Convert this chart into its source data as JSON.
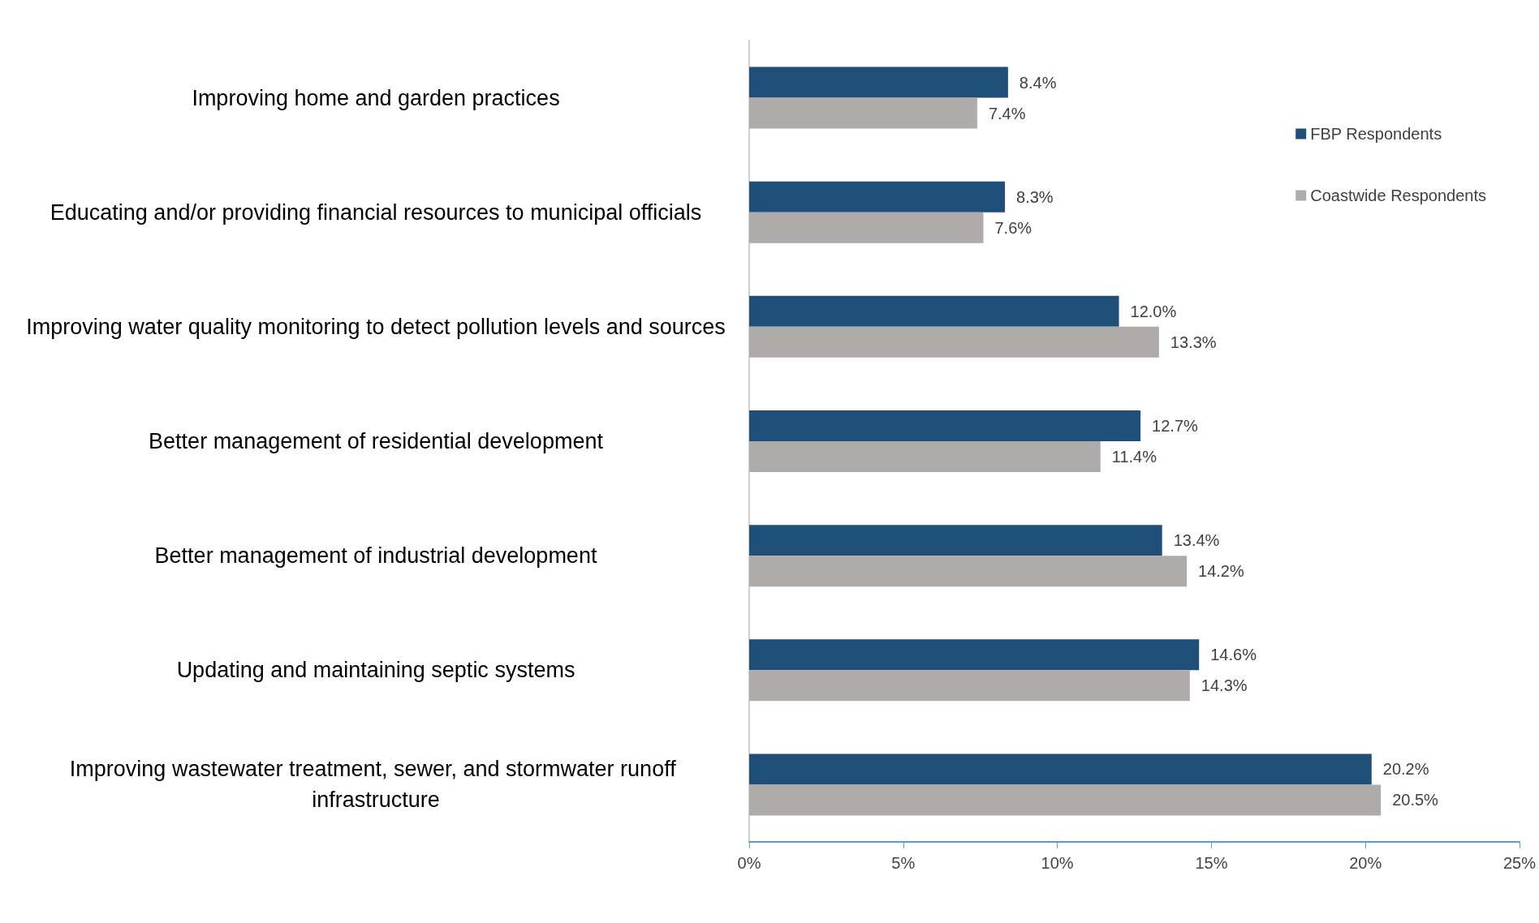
{
  "chart_data": {
    "type": "bar",
    "orientation": "horizontal",
    "categories": [
      "Improving home and garden practices",
      "Educating and/or providing financial resources to municipal officials",
      "Improving water quality monitoring to detect pollution levels and sources",
      "Better management of residential development",
      "Better management of industrial development",
      "Updating and maintaining septic systems",
      "Improving wastewater treatment, sewer, and stormwater runoff infrastructure"
    ],
    "series": [
      {
        "name": "FBP Respondents",
        "color": "#1f4e79",
        "values": [
          8.4,
          8.3,
          12.0,
          12.7,
          13.4,
          14.6,
          20.2
        ],
        "value_labels": [
          "8.4%",
          "8.3%",
          "12.0%",
          "12.7%",
          "13.4%",
          "14.6%",
          "20.2%"
        ]
      },
      {
        "name": "Coastwide Respondents",
        "color": "#afabab",
        "values": [
          7.4,
          7.6,
          13.3,
          11.4,
          14.2,
          14.3,
          20.5
        ],
        "value_labels": [
          "7.4%",
          "7.6%",
          "13.3%",
          "11.4%",
          "14.2%",
          "14.3%",
          "20.5%"
        ]
      }
    ],
    "xlim": [
      0,
      25
    ],
    "xticks": [
      {
        "value": 0,
        "label": "0%"
      },
      {
        "value": 5,
        "label": "5%"
      },
      {
        "value": 10,
        "label": "10%"
      },
      {
        "value": 15,
        "label": "15%"
      },
      {
        "value": 20,
        "label": "20%"
      },
      {
        "value": 25,
        "label": "25%"
      }
    ],
    "grid": false,
    "legend": "top right"
  }
}
